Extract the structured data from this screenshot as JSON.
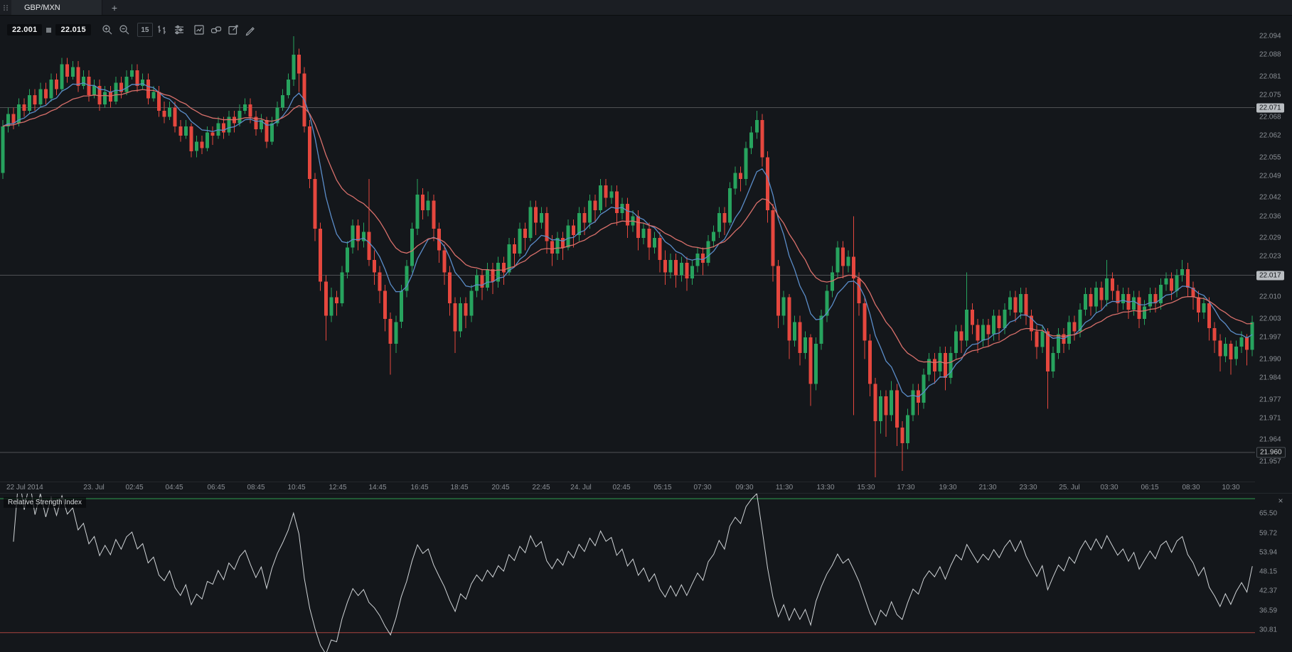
{
  "tab_bar": {
    "active_tab": "GBP/MXN",
    "add_button": "+"
  },
  "toolbar": {
    "bid": "22.001",
    "ask": "22.015",
    "timeframe": "15",
    "groups": [
      [
        "zoom-in",
        "zoom-out"
      ],
      [
        "timeframe",
        "bar-chart",
        "indicators"
      ],
      [
        "chart-type",
        "link",
        "edit",
        "draw"
      ]
    ]
  },
  "price_axis": {
    "range": {
      "min": 21.9506,
      "max": 22.1004
    },
    "labels": [
      "22.094",
      "22.088",
      "22.081",
      "22.075",
      "22.068",
      "22.062",
      "22.055",
      "22.049",
      "22.042",
      "22.036",
      "22.029",
      "22.023",
      "22.017",
      "22.010",
      "22.003",
      "21.997",
      "21.990",
      "21.984",
      "21.977",
      "21.971",
      "21.964",
      "21.957"
    ],
    "badges": [
      {
        "text": "22.071",
        "value": 22.071,
        "style": "light"
      },
      {
        "text": "22.017",
        "value": 22.017,
        "style": "light"
      },
      {
        "text": "21.960",
        "value": 21.96,
        "style": "dark"
      }
    ]
  },
  "levels": [
    {
      "price": 22.071,
      "color": "rgba(255,255,255,0.25)"
    },
    {
      "price": 22.017,
      "color": "rgba(255,255,255,0.25)"
    },
    {
      "price": 21.96,
      "color": "rgba(255,255,255,0.25)"
    }
  ],
  "time_axis": {
    "labels": [
      {
        "text": "22 Jul 2014",
        "pos": 0.005
      },
      {
        "text": "23. Jul",
        "pos": 0.075
      },
      {
        "text": "02:45",
        "pos": 0.107
      },
      {
        "text": "04:45",
        "pos": 0.139
      },
      {
        "text": "06:45",
        "pos": 0.172
      },
      {
        "text": "08:45",
        "pos": 0.204
      },
      {
        "text": "10:45",
        "pos": 0.236
      },
      {
        "text": "12:45",
        "pos": 0.269
      },
      {
        "text": "14:45",
        "pos": 0.301
      },
      {
        "text": "16:45",
        "pos": 0.334
      },
      {
        "text": "18:45",
        "pos": 0.366
      },
      {
        "text": "20:45",
        "pos": 0.399
      },
      {
        "text": "22:45",
        "pos": 0.431
      },
      {
        "text": "24. Jul",
        "pos": 0.463
      },
      {
        "text": "02:45",
        "pos": 0.495
      },
      {
        "text": "05:15",
        "pos": 0.528
      },
      {
        "text": "07:30",
        "pos": 0.56
      },
      {
        "text": "09:30",
        "pos": 0.593
      },
      {
        "text": "11:30",
        "pos": 0.625
      },
      {
        "text": "13:30",
        "pos": 0.658
      },
      {
        "text": "15:30",
        "pos": 0.69
      },
      {
        "text": "17:30",
        "pos": 0.722
      },
      {
        "text": "19:30",
        "pos": 0.755
      },
      {
        "text": "21:30",
        "pos": 0.787
      },
      {
        "text": "23:30",
        "pos": 0.819
      },
      {
        "text": "25. Jul",
        "pos": 0.852
      },
      {
        "text": "03:30",
        "pos": 0.884
      },
      {
        "text": "06:15",
        "pos": 0.916
      },
      {
        "text": "08:30",
        "pos": 0.949
      },
      {
        "text": "10:30",
        "pos": 0.981
      }
    ]
  },
  "rsi_panel": {
    "title": "Relative Strength Index",
    "close_label": "×",
    "range": {
      "min": 24,
      "max": 71.5
    },
    "labels": [
      "65.50",
      "59.72",
      "53.94",
      "48.15",
      "42.37",
      "36.59",
      "30.81"
    ],
    "levels": {
      "upper": {
        "value": 70,
        "color": "#2f9e4f"
      },
      "lower": {
        "value": 30,
        "color": "#a84440"
      }
    },
    "line_color": "#cfd3d6"
  },
  "chart_data": {
    "type": "candlestick",
    "symbol": "GBP/MXN",
    "timeframe": "15m",
    "price_base": 21.9,
    "price_unit": 0.001,
    "candles": "150,167,148,165;165,171,163,169;169,171,164,166;166,174,165,172;172,174,168,170;170,177,169,175;175,177,170,172;172,179,171,177;177,179,172,174;174,182,173,180;180,182,175,177;177,187,176,185;185,187,179,181;181,186,180,184;184,186,176,178;178,183,177,181;181,183,173,175;175,180,174,178;178,180,170,172;172,178,171,176;176,178,171,173;173,181,172,179;179,181,174,176;176,183,175,181;181,185,180,183;183,185,176,178;178,182,177,180;180,182,172,174;174,178,173,176;176,178,168,170;170,173,166,168;168,173,167,171;171,173,163,165;165,167,160,162;162,167,161,165;165,166,155,157;157,162,155,160;160,162,156,158;158,165,157,163;163,165,159,162;162,168,161,166;166,168,161,163;163,170,162,168;168,170,163,166;166,172,165,170;170,174,169,172;172,174,166,168;168,170,162,164;164,169,163,167;167,168,158,160;160,168,159,166;166,173,165,171;171,177,170,175;175,182,174,180;180,194,178,188;188,190,176,182;182,184,163,165;165,167,145,148;148,150,128,132;132,134,112,115;115,117,96,104;104,113,102,110;110,112,104,108;108,120,107,118;118,128,116,126;126,135,124,133;133,135,125,128;128,134,126,131;131,148,120,122;122,125,114,118;118,120,108,112;112,114,99,103;103,105,85,95;95,104,92,102;102,114,100,112;112,122,110,120;120,134,118,132;132,148,130,143;143,145,135,138;138,144,136,141;141,143,128,132;132,134,121,125;125,127,114,118;118,120,104,108;108,110,92,99;99,110,97,108;108,110,100,104;104,114,102,112;112,119,110,117;117,119,109,113;113,121,112,119;119,121,111,115;115,123,113,121;121,123,114,118;118,129,117,127;127,129,120,124;124,134,123,132;132,134,125,129;129,141,128,139;139,141,130,134;134,139,132,137;137,139,124,128;128,130,120,124;124,131,122,129;129,131,122,126;126,135,125,133;133,135,126,130;130,139,128,137;137,139,130,134;134,143,132,141;141,143,134,138;138,148,137,146;146,148,139,142;142,146,140,144;144,146,133,137;137,142,135,140;140,142,129,133;133,138,131,136;136,138,125,129;129,134,127,132;132,134,122,126;126,131,124,129;129,131,118,122;122,125,114,118;118,124,116,122;122,124,113,117;117,123,115,121;121,123,112,116;116,122,114,120;120,126,118,124;124,126,117,121;121,130,120,128;128,133,126,131;131,139,129,137;137,139,130,134;134,147,133,145;145,152,143,150;150,152,144,148;148,160,146,158;158,165,156,163;163,170,161,167;167,169,152,155;155,157,134,138;138,140,115,120;120,122,100,104;104,112,101,110;110,111,90,96;96,104,94,102;102,104,88,92;92,99,90,97;97,98,75,82;82,97,80,95;95,106,93,104;104,114,102,112;112,120,110,118;118,128,116,126;126,128,116,120;120,125,118,123;123,136,72,116;116,118,104,108;108,110,90,96;96,98,78,82;82,84,52,70;70,80,66,78;78,80,65,72;72,83,70,80;80,82,62,68;68,70,54,63;63,74,61,72;72,82,70,80;80,82,72,76;76,87,74,85;85,92,83,90;90,92,82,86;86,94,84,92;92,94,80,84;84,94,82,92;92,101,90,99;99,101,92,96;96,118,94,106;106,108,98,101;101,103,92,96;96,103,94,101;101,103,94,98;98,106,96,104;104,106,96,100;100,108,98,106;106,112,104,110;110,112,102,105;105,113,103,111;111,113,101,104;104,106,96,99;99,101,90,94;94,101,92,99;99,100,74,86;86,94,84,92;92,100,90,98;98,100,92,95;95,104,93,102;102,104,96,99;99,108,97,106;106,113,104,111;111,113,104,107;107,115,105,113;113,115,106,109;109,122,107,116;116,118,109,112;112,114,105,108;108,113,106,111;111,113,103,106;106,112,104,110;110,112,100,103;103,109,101,107;107,113,105,111;111,113,105,108;108,116,106,114;114,118,112,116;116,118,109,112;112,119,110,117;117,122,115,119;119,121,110,113;113,115,106,110;110,112,102,105;105,110,103,108;108,110,96,100;100,102,92,96;96,98,86,91;91,97,89,95;95,96,85,90;90,96,88,94;94,99,92,97;97,98,88,93;93,104,91,102",
    "overlays": [
      {
        "type": "ema",
        "period": 9,
        "color": "#5b8dc9"
      },
      {
        "type": "ema",
        "period": 21,
        "color": "#d9706b"
      }
    ],
    "oscillator": {
      "type": "rsi",
      "period": 14
    },
    "colors": {
      "bull": "#27a35e",
      "bear": "#e5473e",
      "background": "#14171b"
    }
  }
}
